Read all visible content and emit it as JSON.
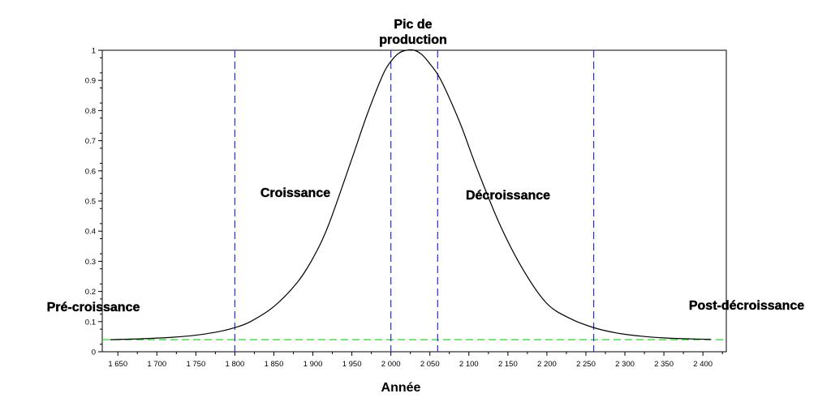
{
  "chart_data": {
    "type": "line",
    "title": "",
    "xlabel": "Année",
    "ylabel": "",
    "xlim": [
      1630,
      2430
    ],
    "ylim": [
      0,
      1
    ],
    "grid": false,
    "x_ticks": [
      1650,
      1700,
      1750,
      1800,
      1850,
      1900,
      1950,
      2000,
      2050,
      2100,
      2150,
      2200,
      2250,
      2300,
      2350,
      2400
    ],
    "x_tick_labels": [
      "1 650",
      "1 700",
      "1 750",
      "1 800",
      "1 850",
      "1 900",
      "1 950",
      "2 000",
      "2 050",
      "2 100",
      "2 150",
      "2 200",
      "2 250",
      "2 300",
      "2 350",
      "2 400"
    ],
    "y_ticks": [
      0,
      0.1,
      0.2,
      0.3,
      0.4,
      0.5,
      0.6,
      0.7,
      0.8,
      0.9,
      1
    ],
    "y_tick_labels": [
      "0",
      "0.1",
      "0.2",
      "0.3",
      "0.4",
      "0.5",
      "0.6",
      "0.7",
      "0.8",
      "0.9",
      "1"
    ],
    "series": [
      {
        "color": "#000000",
        "x": [
          1640,
          1680,
          1720,
          1750,
          1780,
          1800,
          1820,
          1850,
          1880,
          1900,
          1920,
          1950,
          1970,
          1990,
          2000,
          2010,
          2020,
          2030,
          2040,
          2050,
          2060,
          2070,
          2090,
          2110,
          2140,
          2170,
          2200,
          2230,
          2260,
          2290,
          2320,
          2350,
          2380,
          2410
        ],
        "y": [
          0.04,
          0.043,
          0.048,
          0.055,
          0.067,
          0.08,
          0.1,
          0.15,
          0.23,
          0.31,
          0.42,
          0.64,
          0.79,
          0.92,
          0.963,
          0.99,
          1.0,
          1.0,
          0.985,
          0.955,
          0.92,
          0.87,
          0.75,
          0.61,
          0.42,
          0.27,
          0.16,
          0.11,
          0.08,
          0.062,
          0.052,
          0.046,
          0.043,
          0.041
        ]
      }
    ],
    "reference_line": {
      "y": 0.04,
      "color": "#22dd22",
      "style": "dashed"
    },
    "vertical_lines": {
      "x": [
        1800,
        2000,
        2060,
        2260
      ],
      "color": "#2b2bdd",
      "style": "dashed"
    },
    "annotations": {
      "peak": [
        "Pic de",
        "production"
      ],
      "croissance": "Croissance",
      "decroissance": "Décroissance",
      "pre": "Pré-croissance",
      "post": "Post-décroissance"
    }
  }
}
